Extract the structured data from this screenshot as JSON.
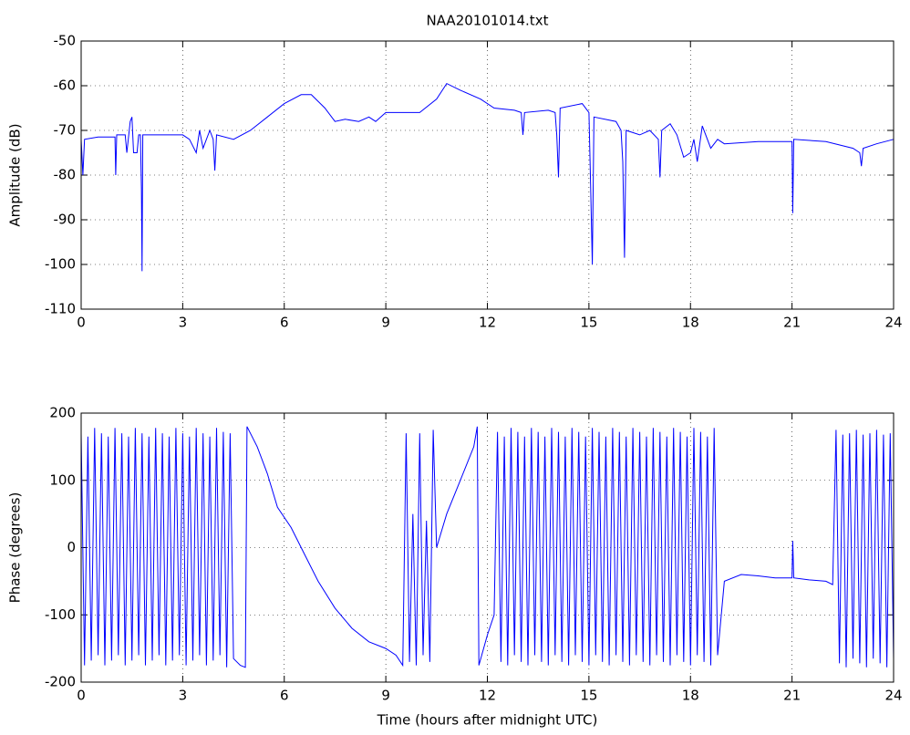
{
  "chart_data": [
    {
      "type": "line",
      "title": "NAA20101014.txt",
      "ylabel": "Amplitude (dB)",
      "x": [
        0,
        0.05,
        0.1,
        0.5,
        1,
        1.02,
        1.05,
        1.3,
        1.35,
        1.45,
        1.5,
        1.55,
        1.65,
        1.7,
        1.75,
        1.78,
        1.8,
        1.82,
        2.5,
        3,
        3.2,
        3.4,
        3.5,
        3.6,
        3.8,
        3.9,
        3.95,
        4,
        4.5,
        5,
        5.5,
        6,
        6.5,
        6.8,
        7.2,
        7.5,
        7.8,
        8.2,
        8.5,
        8.7,
        9,
        9.5,
        10,
        10.5,
        10.8,
        11.2,
        11.8,
        12.2,
        12.8,
        13,
        13.05,
        13.1,
        13.8,
        14,
        14.05,
        14.1,
        14.15,
        14.8,
        15,
        15.05,
        15.1,
        15.15,
        15.8,
        15.95,
        16,
        16.05,
        16.1,
        16.5,
        16.8,
        17.05,
        17.1,
        17.15,
        17.4,
        17.6,
        17.8,
        18,
        18.1,
        18.2,
        18.35,
        18.6,
        18.8,
        19,
        20,
        21,
        21.02,
        21.05,
        22,
        22.8,
        23,
        23.05,
        23.1,
        23.5,
        24
      ],
      "series": [
        {
          "color": "#0000ff",
          "values": [
            -72,
            -80,
            -72,
            -71.5,
            -71.5,
            -80,
            -71,
            -71,
            -75,
            -68,
            -67,
            -75,
            -75,
            -71,
            -71,
            -83,
            -101.5,
            -71,
            -71,
            -71,
            -72,
            -75,
            -70,
            -74,
            -70,
            -72,
            -79,
            -71,
            -72,
            -70,
            -67,
            -64,
            -62,
            -62,
            -65,
            -68,
            -67.5,
            -68,
            -67,
            -68,
            -66,
            -66,
            -66,
            -63,
            -59.5,
            -61,
            -63,
            -65,
            -65.5,
            -66,
            -71,
            -66,
            -65.5,
            -66,
            -71,
            -80.5,
            -65,
            -64,
            -66,
            -82,
            -100,
            -67,
            -68,
            -70,
            -77,
            -98.5,
            -70,
            -71,
            -70,
            -72,
            -80.5,
            -70,
            -68.5,
            -71,
            -76,
            -75,
            -72,
            -77,
            -69,
            -74,
            -72,
            -73,
            -72.5,
            -72.5,
            -88.5,
            -72,
            -72.5,
            -74,
            -75,
            -78,
            -74,
            -73,
            -72
          ]
        }
      ],
      "xlim": [
        0,
        24
      ],
      "xticks": [
        0,
        3,
        6,
        9,
        12,
        15,
        18,
        21,
        24
      ],
      "ylim": [
        -110,
        -50
      ],
      "yticks": [
        -110,
        -100,
        -90,
        -80,
        -70,
        -60,
        -50
      ],
      "grid": true
    },
    {
      "type": "line",
      "xlabel": "Time (hours after midnight UTC)",
      "ylabel": "Phase (degrees)",
      "x": [
        0,
        0.1,
        0.2,
        0.3,
        0.4,
        0.5,
        0.6,
        0.7,
        0.8,
        0.9,
        1,
        1.1,
        1.2,
        1.3,
        1.4,
        1.5,
        1.6,
        1.7,
        1.8,
        1.9,
        2,
        2.1,
        2.2,
        2.3,
        2.4,
        2.5,
        2.6,
        2.7,
        2.8,
        2.9,
        3,
        3.1,
        3.2,
        3.3,
        3.4,
        3.5,
        3.6,
        3.7,
        3.8,
        3.9,
        4,
        4.1,
        4.2,
        4.3,
        4.4,
        4.5,
        4.7,
        4.85,
        4.9,
        5.2,
        5.5,
        5.8,
        6.2,
        6.6,
        7,
        7.5,
        8,
        8.5,
        9,
        9.3,
        9.5,
        9.6,
        9.7,
        9.8,
        9.9,
        10,
        10.1,
        10.2,
        10.3,
        10.4,
        10.5,
        10.8,
        11.2,
        11.6,
        11.7,
        11.75,
        12,
        12.2,
        12.3,
        12.4,
        12.5,
        12.6,
        12.7,
        12.8,
        12.9,
        13,
        13.1,
        13.2,
        13.3,
        13.4,
        13.5,
        13.6,
        13.7,
        13.8,
        13.9,
        14,
        14.1,
        14.2,
        14.3,
        14.4,
        14.5,
        14.6,
        14.7,
        14.8,
        14.9,
        15,
        15.1,
        15.2,
        15.3,
        15.4,
        15.5,
        15.6,
        15.7,
        15.8,
        15.9,
        16,
        16.1,
        16.2,
        16.3,
        16.4,
        16.5,
        16.6,
        16.7,
        16.8,
        16.9,
        17,
        17.1,
        17.2,
        17.3,
        17.4,
        17.5,
        17.6,
        17.7,
        17.8,
        17.9,
        18,
        18.1,
        18.2,
        18.3,
        18.4,
        18.5,
        18.6,
        18.7,
        18.8,
        19,
        19.5,
        20,
        20.5,
        21,
        21.02,
        21.05,
        21.5,
        22,
        22.2,
        22.3,
        22.4,
        22.5,
        22.6,
        22.7,
        22.8,
        22.9,
        23,
        23.1,
        23.2,
        23.3,
        23.4,
        23.5,
        23.6,
        23.7,
        23.8,
        23.9,
        24
      ],
      "series": [
        {
          "color": "#0000ff",
          "values": [
            170,
            -175,
            165,
            -168,
            178,
            -160,
            170,
            -175,
            165,
            -168,
            178,
            -160,
            170,
            -175,
            165,
            -168,
            178,
            -160,
            170,
            -175,
            165,
            -168,
            178,
            -160,
            170,
            -175,
            165,
            -168,
            178,
            -160,
            170,
            -175,
            165,
            -168,
            178,
            -160,
            170,
            -175,
            165,
            -168,
            178,
            -160,
            172,
            -178,
            170,
            -165,
            -175,
            -178,
            180,
            150,
            110,
            60,
            30,
            -10,
            -50,
            -90,
            -120,
            -140,
            -150,
            -160,
            -175,
            170,
            -170,
            50,
            -175,
            170,
            -160,
            40,
            -170,
            175,
            0,
            50,
            100,
            150,
            180,
            -175,
            -130,
            -100,
            172,
            -170,
            165,
            -175,
            178,
            -160,
            172,
            -170,
            165,
            -175,
            178,
            -160,
            172,
            -170,
            165,
            -175,
            178,
            -160,
            172,
            -170,
            165,
            -175,
            178,
            -160,
            172,
            -170,
            165,
            -175,
            178,
            -160,
            172,
            -170,
            165,
            -175,
            178,
            -160,
            172,
            -170,
            165,
            -175,
            178,
            -160,
            172,
            -170,
            165,
            -175,
            178,
            -160,
            172,
            -170,
            165,
            -175,
            178,
            -160,
            172,
            -170,
            165,
            -175,
            178,
            -160,
            172,
            -170,
            165,
            -175,
            178,
            -160,
            -50,
            -40,
            -42,
            -45,
            -45,
            10,
            -45,
            -48,
            -50,
            -55,
            175,
            -172,
            168,
            -178,
            170,
            -165,
            175,
            -172,
            168,
            -178,
            170,
            -165,
            175,
            -172,
            168,
            -178,
            170,
            -165
          ]
        }
      ],
      "xlim": [
        0,
        24
      ],
      "xticks": [
        0,
        3,
        6,
        9,
        12,
        15,
        18,
        21,
        24
      ],
      "ylim": [
        -200,
        200
      ],
      "yticks": [
        -200,
        -100,
        0,
        100,
        200
      ],
      "grid": true
    }
  ]
}
